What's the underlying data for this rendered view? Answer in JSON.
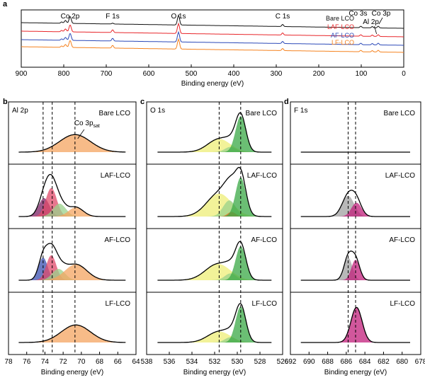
{
  "panel_letters": [
    "a",
    "b",
    "c",
    "d"
  ],
  "chart_data": [
    {
      "panel": "a",
      "type": "line",
      "xlabel": "Binding energy (eV)",
      "ylabel": "",
      "xlim": [
        900,
        0
      ],
      "xticks": [
        900,
        800,
        700,
        600,
        500,
        400,
        300,
        200,
        100,
        0
      ],
      "peak_labels": [
        {
          "text": "Co 2p",
          "x": 785
        },
        {
          "text": "F 1s",
          "x": 685
        },
        {
          "text": "O 1s",
          "x": 530
        },
        {
          "text": "C 1s",
          "x": 285
        },
        {
          "text": "Co 3s",
          "x": 101
        },
        {
          "text": "Al 2p",
          "x": 74
        },
        {
          "text": "Co 3p",
          "x": 60
        }
      ],
      "series": [
        {
          "name": "Bare LCO",
          "color": "#111111"
        },
        {
          "name": "LAF-LCO",
          "color": "#e8262a"
        },
        {
          "name": "AF-LCO",
          "color": "#2b49b8"
        },
        {
          "name": "LF-LCO",
          "color": "#f5821f"
        }
      ]
    },
    {
      "panel": "b",
      "type": "area",
      "element_label": "Al 2p",
      "xlabel": "Binding energy (eV)",
      "xlim": [
        78,
        64
      ],
      "xticks": [
        78,
        76,
        74,
        72,
        70,
        68,
        66,
        64
      ],
      "dashed_lines": [
        74.2,
        73.2,
        70.7
      ],
      "annotation": {
        "text": "Co 3p",
        "sub": "sat"
      },
      "subpanels": [
        {
          "label": "Bare LCO",
          "peaks": [
            {
              "center": 70.7,
              "height": 0.4,
              "width": 1.7,
              "color": "#f4a460"
            }
          ]
        },
        {
          "label": "LAF-LCO",
          "peaks": [
            {
              "center": 74.1,
              "height": 0.4,
              "width": 0.6,
              "color": "#7b1f63"
            },
            {
              "center": 73.3,
              "height": 0.62,
              "width": 0.6,
              "color": "#e04a6a"
            },
            {
              "center": 72.4,
              "height": 0.28,
              "width": 0.7,
              "color": "#9ad18b"
            },
            {
              "center": 70.6,
              "height": 0.2,
              "width": 0.8,
              "color": "#f4a460"
            }
          ]
        },
        {
          "label": "AF-LCO",
          "peaks": [
            {
              "center": 74.2,
              "height": 0.5,
              "width": 0.5,
              "color": "#3a4fb0"
            },
            {
              "center": 73.3,
              "height": 0.55,
              "width": 0.55,
              "color": "#e04a6a"
            },
            {
              "center": 72.5,
              "height": 0.25,
              "width": 0.7,
              "color": "#9ad18b"
            },
            {
              "center": 70.6,
              "height": 0.35,
              "width": 1.2,
              "color": "#f4a460"
            }
          ]
        },
        {
          "label": "LF-LCO",
          "peaks": [
            {
              "center": 70.6,
              "height": 0.4,
              "width": 1.6,
              "color": "#f4a460"
            }
          ]
        }
      ]
    },
    {
      "panel": "c",
      "type": "area",
      "element_label": "O 1s",
      "xlabel": "Binding energy (eV)",
      "xlim": [
        538,
        526
      ],
      "xticks": [
        538,
        536,
        534,
        532,
        530,
        528,
        526
      ],
      "dashed_lines": [
        531.6,
        529.7
      ],
      "subpanels": [
        {
          "label": "Bare LCO",
          "peaks": [
            {
              "center": 531.6,
              "height": 0.3,
              "width": 1.0,
              "color": "#eeee77"
            },
            {
              "center": 530.6,
              "height": 0.12,
              "width": 0.5,
              "color": "#9ad18b"
            },
            {
              "center": 529.7,
              "height": 0.82,
              "width": 0.45,
              "color": "#3aa845"
            }
          ]
        },
        {
          "label": "LAF-LCO",
          "peaks": [
            {
              "center": 531.6,
              "height": 0.5,
              "width": 1.1,
              "color": "#eeee77"
            },
            {
              "center": 530.7,
              "height": 0.35,
              "width": 0.55,
              "color": "#9ad18b"
            },
            {
              "center": 530.5,
              "height": 0.1,
              "width": 0.35,
              "color": "#e06a20"
            },
            {
              "center": 529.7,
              "height": 0.85,
              "width": 0.45,
              "color": "#3aa845"
            }
          ]
        },
        {
          "label": "AF-LCO",
          "peaks": [
            {
              "center": 531.7,
              "height": 0.36,
              "width": 1.1,
              "color": "#eeee77"
            },
            {
              "center": 530.6,
              "height": 0.15,
              "width": 0.5,
              "color": "#9ad18b"
            },
            {
              "center": 529.7,
              "height": 0.75,
              "width": 0.45,
              "color": "#3aa845"
            }
          ]
        },
        {
          "label": "LF-LCO",
          "peaks": [
            {
              "center": 531.6,
              "height": 0.25,
              "width": 1.0,
              "color": "#eeee77"
            },
            {
              "center": 530.6,
              "height": 0.12,
              "width": 0.5,
              "color": "#9ad18b"
            },
            {
              "center": 529.7,
              "height": 0.82,
              "width": 0.45,
              "color": "#3aa845"
            }
          ]
        }
      ]
    },
    {
      "panel": "d",
      "type": "area",
      "element_label": "F 1s",
      "xlabel": "Binding energy (eV)",
      "xlim": [
        692,
        678
      ],
      "xticks": [
        692,
        690,
        688,
        686,
        684,
        682,
        680,
        678
      ],
      "dashed_lines": [
        685.8,
        685.0
      ],
      "subpanels": [
        {
          "label": "Bare LCO",
          "peaks": []
        },
        {
          "label": "LAF-LCO",
          "peaks": [
            {
              "center": 685.8,
              "height": 0.45,
              "width": 0.65,
              "color": "#a0a0a0"
            },
            {
              "center": 684.9,
              "height": 0.3,
              "width": 0.55,
              "color": "#c21f7b"
            }
          ]
        },
        {
          "label": "AF-LCO",
          "peaks": [
            {
              "center": 685.8,
              "height": 0.5,
              "width": 0.45,
              "color": "#a0a0a0"
            },
            {
              "center": 685.0,
              "height": 0.45,
              "width": 0.45,
              "color": "#c21f7b"
            }
          ]
        },
        {
          "label": "LF-LCO",
          "peaks": [
            {
              "center": 684.9,
              "height": 0.8,
              "width": 0.6,
              "color": "#c21f7b"
            }
          ]
        }
      ]
    }
  ]
}
